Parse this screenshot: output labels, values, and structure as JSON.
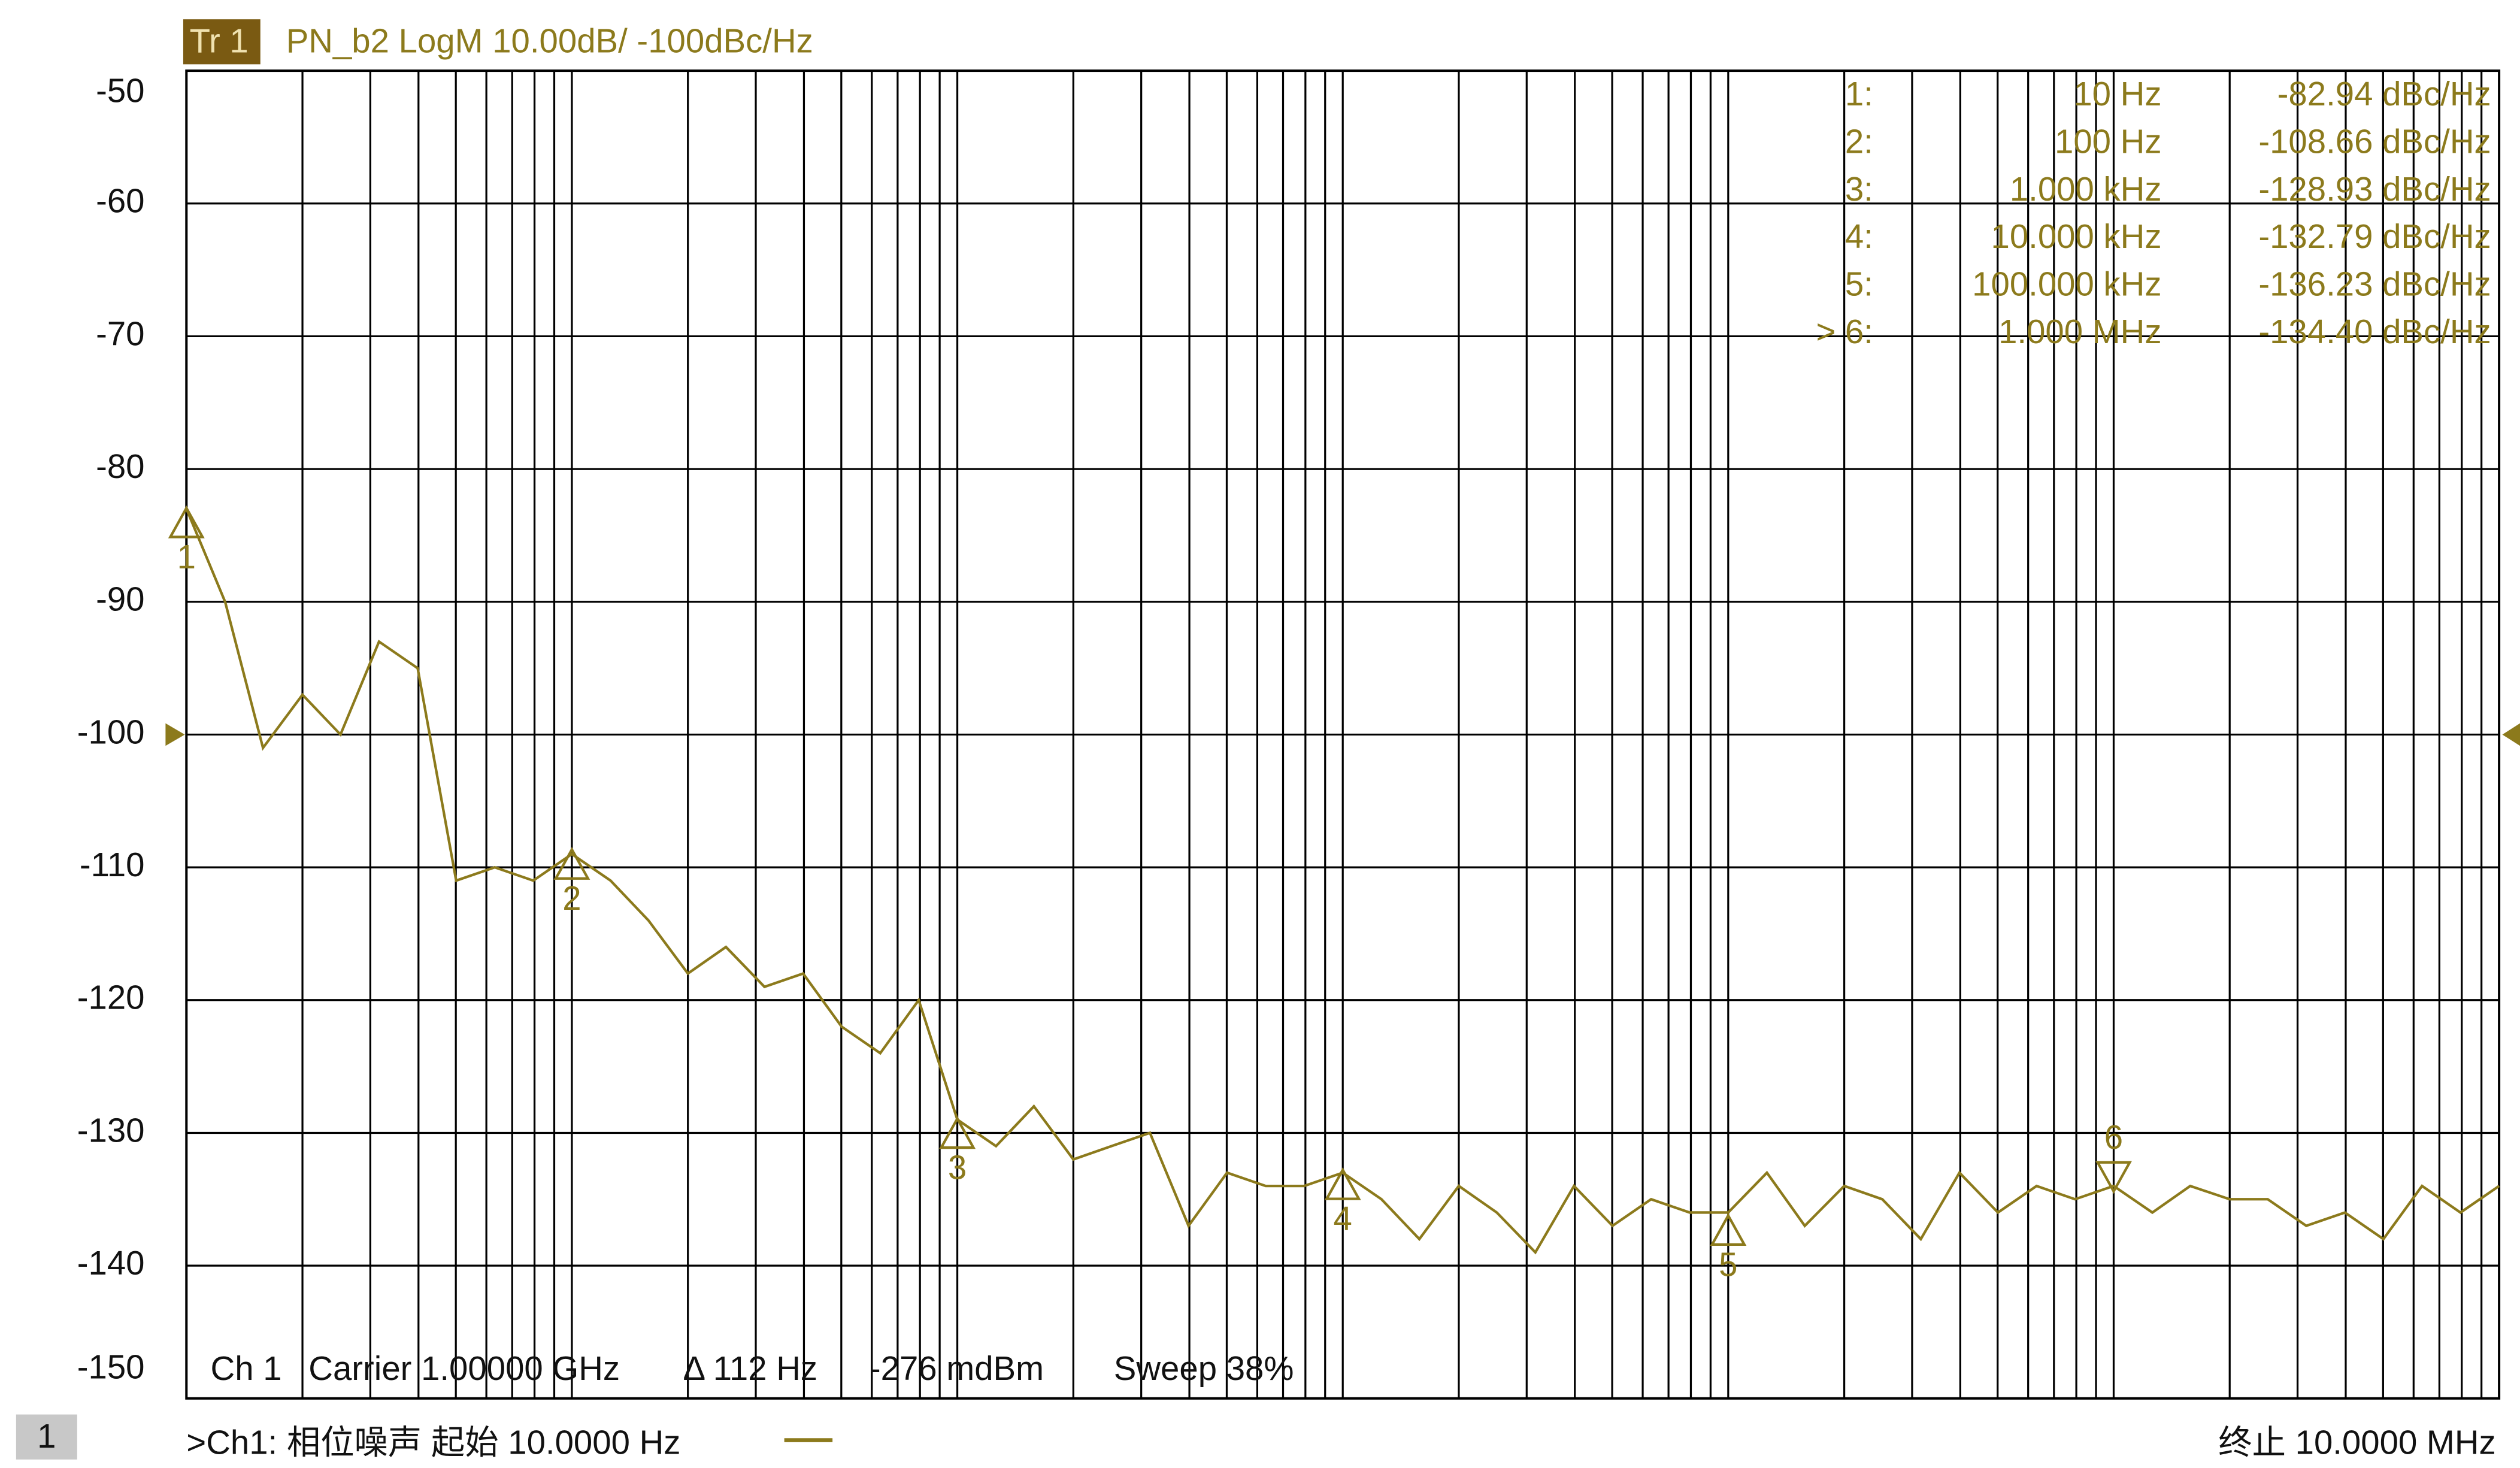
{
  "chart_data": {
    "type": "line",
    "trace_tag": "Tr 1",
    "title": "PN_b2 LogM 10.00dB/  -100dBc/Hz",
    "xscale": "log",
    "xlim": [
      10,
      10000000
    ],
    "xticks": [
      10,
      20,
      30,
      40,
      50,
      60,
      70,
      80,
      90,
      100,
      200,
      300,
      400,
      500,
      600,
      700,
      800,
      900,
      1000,
      2000,
      3000,
      4000,
      5000,
      6000,
      7000,
      8000,
      9000,
      10000,
      20000,
      30000,
      40000,
      50000,
      60000,
      70000,
      80000,
      90000,
      100000,
      200000,
      300000,
      400000,
      500000,
      600000,
      700000,
      800000,
      900000,
      1000000,
      2000000,
      3000000,
      4000000,
      5000000,
      6000000,
      7000000,
      8000000,
      9000000,
      10000000
    ],
    "xtick_labels": false,
    "ylim": [
      -150,
      -50
    ],
    "yticks": [
      -50,
      -60,
      -70,
      -80,
      -90,
      -100,
      -110,
      -120,
      -130,
      -140,
      -150
    ],
    "grid": true,
    "reference_level": -100,
    "series": [
      {
        "name": "Tr 1",
        "color": "#8c7a1c",
        "x": [
          10,
          12.6,
          15.8,
          20,
          25.1,
          31.6,
          39.8,
          50.1,
          63.1,
          79.4,
          100,
          126,
          158,
          200,
          251,
          316,
          398,
          501,
          631,
          794,
          1000,
          1260,
          1580,
          2000,
          2510,
          3160,
          3980,
          5010,
          6310,
          7940,
          10000,
          12600,
          15800,
          20000,
          25100,
          31600,
          39800,
          50100,
          63100,
          79400,
          100000,
          126000,
          158000,
          200000,
          251000,
          316000,
          398000,
          501000,
          631000,
          794000,
          1000000,
          1260000,
          1580000,
          2000000,
          2510000,
          3160000,
          3980000,
          5010000,
          6310000,
          7940000,
          10000000
        ],
        "values": [
          -83,
          -90,
          -101,
          -97,
          -100,
          -93,
          -95,
          -111,
          -110,
          -111,
          -109,
          -111,
          -114,
          -118,
          -116,
          -119,
          -118,
          -122,
          -124,
          -120,
          -129,
          -131,
          -128,
          -132,
          -131,
          -130,
          -137,
          -133,
          -134,
          -134,
          -133,
          -135,
          -138,
          -134,
          -136,
          -139,
          -134,
          -137,
          -135,
          -136,
          -136,
          -133,
          -137,
          -134,
          -135,
          -138,
          -133,
          -136,
          -134,
          -135,
          -134,
          -136,
          -134,
          -135,
          -135,
          -137,
          -136,
          -138,
          -134,
          -136,
          -134
        ]
      }
    ],
    "markers": [
      {
        "id": "1",
        "table_id": "1:",
        "x": 10,
        "y": -82.94,
        "x_label": "10 Hz",
        "y_label": "-82.94 dBc/Hz"
      },
      {
        "id": "2",
        "table_id": "2:",
        "x": 100,
        "y": -108.66,
        "x_label": "100 Hz",
        "y_label": "-108.66 dBc/Hz"
      },
      {
        "id": "3",
        "table_id": "3:",
        "x": 1000,
        "y": -128.93,
        "x_label": "1.000  kHz",
        "y_label": "-128.93 dBc/Hz"
      },
      {
        "id": "4",
        "table_id": "4:",
        "x": 10000,
        "y": -132.79,
        "x_label": "10.000  kHz",
        "y_label": "-132.79 dBc/Hz"
      },
      {
        "id": "5",
        "table_id": "5:",
        "x": 100000,
        "y": -136.23,
        "x_label": "100.000  kHz",
        "y_label": "-136.23 dBc/Hz"
      },
      {
        "id": "6",
        "table_id": "6:",
        "x": 1000000,
        "y": -134.4,
        "x_label": "1.000  MHz",
        "y_label": "-134.40 dBc/Hz"
      }
    ],
    "active_marker": 5,
    "active_symbol": ">",
    "status": [
      "Ch 1",
      "Carrier 1.00000 GHz",
      "Δ 112 Hz",
      "-276 mdBm",
      "Sweep 38%"
    ],
    "channel_number": "1",
    "start_label": ">Ch1: 相位噪声  起始   10.0000 Hz",
    "stop_label": "终止  10.0000 MHz"
  }
}
